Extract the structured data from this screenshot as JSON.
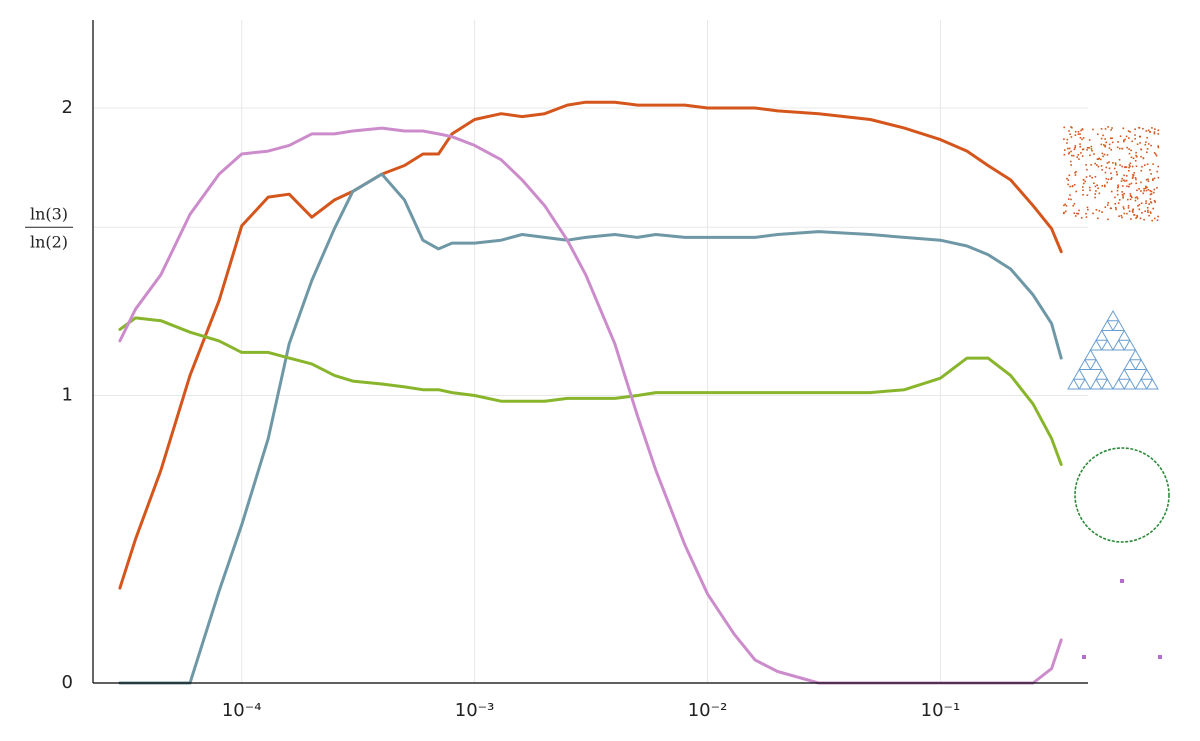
{
  "chart_data": {
    "type": "line",
    "xscale": "log",
    "grid": true,
    "x": [
      3e-05,
      3.5e-05,
      4.5e-05,
      6e-05,
      8e-05,
      0.0001,
      0.00013,
      0.00016,
      0.0002,
      0.00025,
      0.0003,
      0.0004,
      0.0005,
      0.0006,
      0.0007,
      0.0008,
      0.001,
      0.0013,
      0.0016,
      0.002,
      0.0025,
      0.003,
      0.004,
      0.005,
      0.006,
      0.008,
      0.01,
      0.013,
      0.016,
      0.02,
      0.03,
      0.05,
      0.07,
      0.1,
      0.13,
      0.16,
      0.2,
      0.25,
      0.3,
      0.33
    ],
    "series": [
      {
        "color": "#d4561c",
        "values": [
          0.33,
          0.5,
          0.74,
          1.07,
          1.33,
          1.59,
          1.69,
          1.7,
          1.62,
          1.68,
          1.71,
          1.77,
          1.8,
          1.84,
          1.84,
          1.91,
          1.96,
          1.98,
          1.97,
          1.98,
          2.01,
          2.02,
          2.02,
          2.01,
          2.01,
          2.01,
          2.0,
          2.0,
          2.0,
          1.99,
          1.98,
          1.96,
          1.93,
          1.89,
          1.85,
          1.8,
          1.75,
          1.66,
          1.58,
          1.5
        ]
      },
      {
        "color": "#6f98a6",
        "values": [
          0,
          0,
          0,
          0,
          0.32,
          0.55,
          0.85,
          1.18,
          1.4,
          1.58,
          1.71,
          1.77,
          1.68,
          1.54,
          1.51,
          1.53,
          1.53,
          1.54,
          1.56,
          1.55,
          1.54,
          1.55,
          1.56,
          1.55,
          1.56,
          1.55,
          1.55,
          1.55,
          1.55,
          1.56,
          1.57,
          1.56,
          1.55,
          1.54,
          1.52,
          1.49,
          1.44,
          1.35,
          1.25,
          1.13
        ]
      },
      {
        "color": "#88b52c",
        "values": [
          1.23,
          1.27,
          1.26,
          1.22,
          1.19,
          1.15,
          1.15,
          1.13,
          1.11,
          1.07,
          1.05,
          1.04,
          1.03,
          1.02,
          1.02,
          1.01,
          1.0,
          0.98,
          0.98,
          0.98,
          0.99,
          0.99,
          0.99,
          1.0,
          1.01,
          1.01,
          1.01,
          1.01,
          1.01,
          1.01,
          1.01,
          1.01,
          1.02,
          1.06,
          1.13,
          1.13,
          1.07,
          0.97,
          0.85,
          0.76
        ]
      },
      {
        "color": "#cc8ccc",
        "values": [
          1.19,
          1.3,
          1.42,
          1.63,
          1.77,
          1.84,
          1.85,
          1.87,
          1.91,
          1.91,
          1.92,
          1.93,
          1.92,
          1.92,
          1.91,
          1.9,
          1.87,
          1.82,
          1.75,
          1.66,
          1.54,
          1.42,
          1.18,
          0.93,
          0.74,
          0.48,
          0.31,
          0.17,
          0.08,
          0.04,
          0,
          0,
          0,
          0,
          0,
          0,
          0,
          0,
          0.05,
          0.15
        ]
      }
    ],
    "xlim": [
      2.3e-05,
      0.43
    ],
    "xticks": [
      {
        "value": 0.0001,
        "label": "10⁻⁴"
      },
      {
        "value": 0.001,
        "label": "10⁻³"
      },
      {
        "value": 0.01,
        "label": "10⁻²"
      },
      {
        "value": 0.1,
        "label": "10⁻¹"
      }
    ],
    "ylim": [
      0,
      2.306
    ],
    "yticks": [
      0,
      1,
      {
        "value": 1.585,
        "label": "ln(3)/ln(2)"
      },
      2
    ]
  }
}
